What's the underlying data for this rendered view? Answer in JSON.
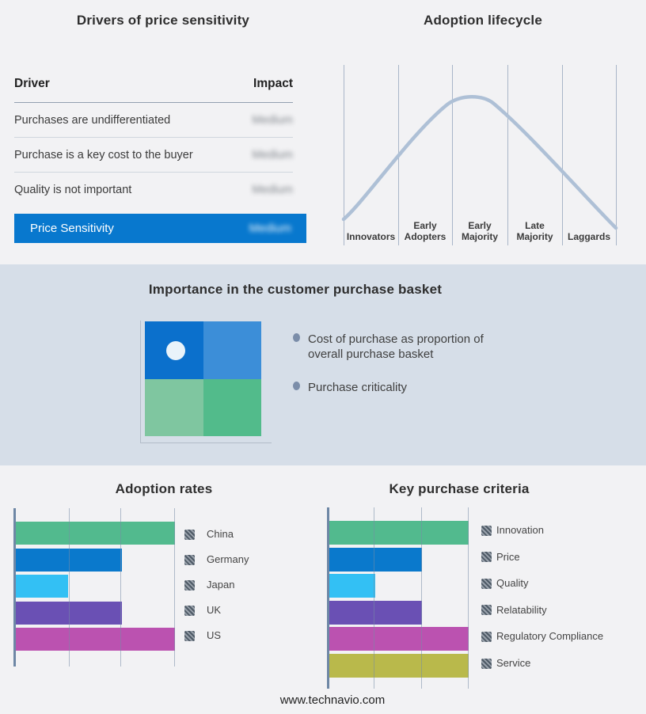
{
  "colors": {
    "background": "#f2f2f4",
    "band_background": "#d6dee8",
    "accent_blue": "#0878ce",
    "curve": "#aec0d6",
    "axis": "#6e87a5",
    "gridline": "#a9b6c7",
    "legend_swatch_hatch": "#4e5a66"
  },
  "drivers_panel": {
    "title": "Drivers of price sensitivity",
    "columns": {
      "driver": "Driver",
      "impact": "Impact"
    },
    "rows": [
      {
        "driver": "Purchases are undifferentiated",
        "impact": "Medium",
        "impact_blurred": true
      },
      {
        "driver": "Purchase is a key cost to the buyer",
        "impact": "Medium",
        "impact_blurred": true
      },
      {
        "driver": "Quality is not important",
        "impact": "Medium",
        "impact_blurred": true
      }
    ],
    "highlight_row": {
      "driver": "Price Sensitivity",
      "impact": "Medium",
      "impact_blurred": true
    }
  },
  "lifecycle_panel": {
    "title": "Adoption lifecycle",
    "stages": [
      "Innovators",
      "Early Adopters",
      "Early Majority",
      "Late Majority",
      "Laggards"
    ]
  },
  "basket_panel": {
    "title": "Importance in the customer purchase basket",
    "bullets": [
      "Cost of purchase as proportion of overall purchase basket",
      "Purchase criticality"
    ],
    "quadrant_colors": [
      "#0b70cc",
      "#3c8ed8",
      "#7fc6a0",
      "#52bb8b"
    ],
    "quadrant_dot_color": "#e9f3fa"
  },
  "chart_data": [
    {
      "type": "bar",
      "title": "Adoption rates",
      "orientation": "horizontal",
      "categories": [
        "China",
        "Germany",
        "Japan",
        "UK",
        "US"
      ],
      "values": [
        3,
        2,
        1,
        2,
        3
      ],
      "value_note": "relative bar lengths in gridline units; no numeric axis shown",
      "colors": [
        "#52ba8e",
        "#0a79cc",
        "#33c0f4",
        "#6a50b4",
        "#bb52b0"
      ],
      "xlim": [
        0,
        3
      ],
      "grid": true,
      "legend_position": "right"
    },
    {
      "type": "bar",
      "title": "Key purchase criteria",
      "orientation": "horizontal",
      "categories": [
        "Innovation",
        "Price",
        "Quality",
        "Relatability",
        "Regulatory Compliance",
        "Service"
      ],
      "values": [
        3,
        2,
        1,
        2,
        3,
        3
      ],
      "value_note": "relative bar lengths in gridline units; no numeric axis shown",
      "colors": [
        "#52ba8e",
        "#0a79cc",
        "#33c0f4",
        "#6a50b4",
        "#bb52b0",
        "#b9b94b"
      ],
      "xlim": [
        0,
        3
      ],
      "grid": true,
      "legend_position": "right"
    }
  ],
  "footer": {
    "url": "www.technavio.com"
  }
}
